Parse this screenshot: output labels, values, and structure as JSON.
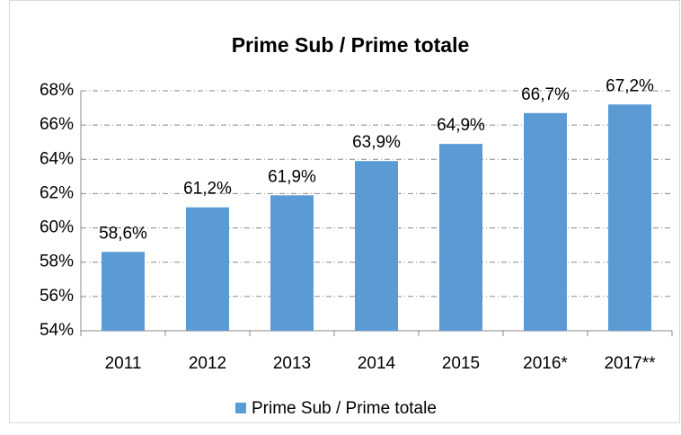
{
  "chart_data": {
    "type": "bar",
    "title": "Prime Sub / Prime totale",
    "categories": [
      "2011",
      "2012",
      "2013",
      "2014",
      "2015",
      "2016*",
      "2017**"
    ],
    "series": [
      {
        "name": "Prime Sub / Prime totale",
        "color": "#5b9bd5",
        "values": [
          58.6,
          61.2,
          61.9,
          63.9,
          64.9,
          66.7,
          67.2
        ],
        "value_labels": [
          "58,6%",
          "61,2%",
          "61,9%",
          "63,9%",
          "64,9%",
          "66,7%",
          "67,2%"
        ]
      }
    ],
    "ylim": [
      54,
      68
    ],
    "yticks": [
      {
        "value": 54,
        "label": "54%"
      },
      {
        "value": 56,
        "label": "56%"
      },
      {
        "value": 58,
        "label": "58%"
      },
      {
        "value": 60,
        "label": "60%"
      },
      {
        "value": 62,
        "label": "62%"
      },
      {
        "value": 64,
        "label": "64%"
      },
      {
        "value": 66,
        "label": "66%"
      },
      {
        "value": 68,
        "label": "68%"
      }
    ],
    "grid": true,
    "legend": "bottom"
  }
}
